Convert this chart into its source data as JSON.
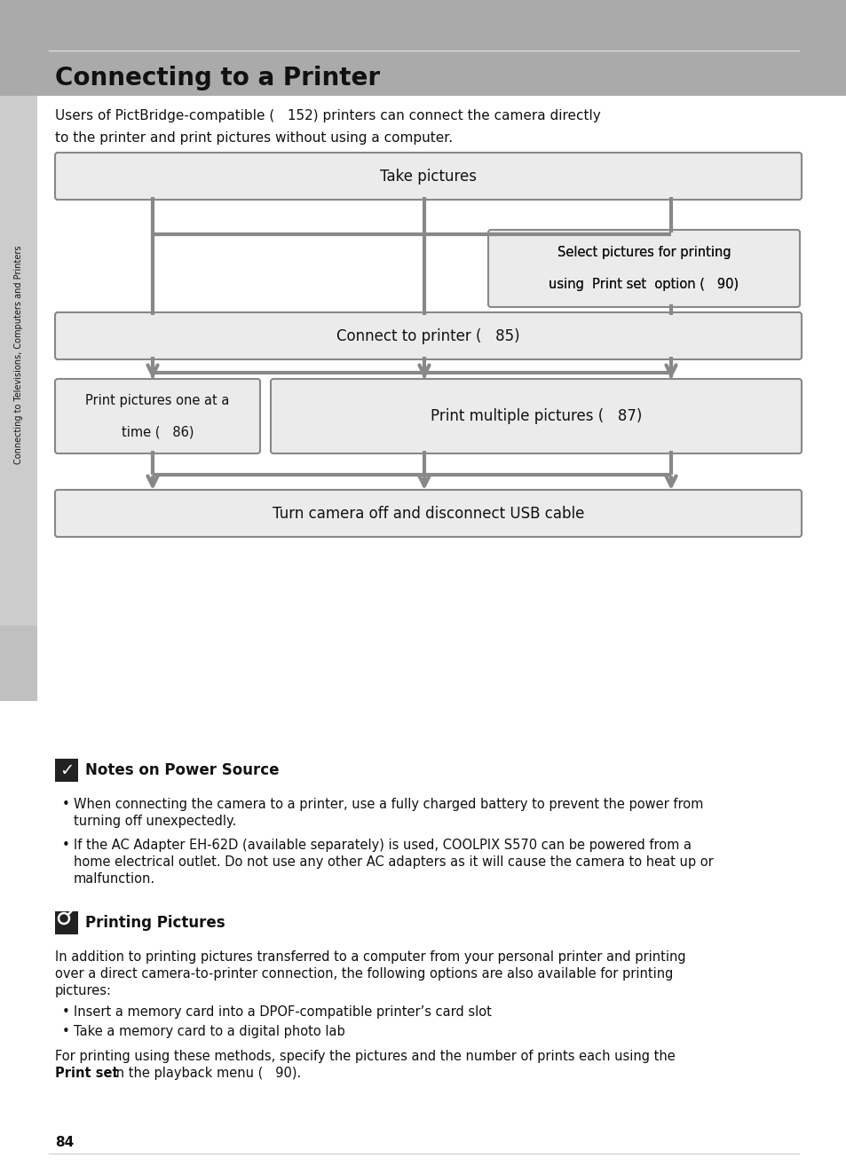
{
  "title": "Connecting to a Printer",
  "header_color": "#aaaaaa",
  "sidebar_color": "#cccccc",
  "sidebar_tab_color": "#bbbbbb",
  "sidebar_text": "Connecting to Televisions, Computers and Printers",
  "intro_line1": "Users of PictBridge-compatible (   152) printers can connect the camera directly",
  "intro_line2": "to the printer and print pictures without using a computer.",
  "box_fill": "#ebebeb",
  "box_edge": "#888888",
  "arrow_color": "#888888",
  "page_number": "84",
  "notes_header": "Notes on Power Source",
  "notes_b1a": "When connecting the camera to a printer, use a fully charged battery to prevent the power from",
  "notes_b1b": "turning off unexpectedly.",
  "notes_b2a": "If the AC Adapter EH-62D (available separately) is used, COOLPIX S570 can be powered from a",
  "notes_b2b": "home electrical outlet. Do not use any other AC adapters as it will cause the camera to heat up or",
  "notes_b2c": "malfunction.",
  "pp_header": "Printing Pictures",
  "pp_body1": "In addition to printing pictures transferred to a computer from your personal printer and printing",
  "pp_body2": "over a direct camera-to-printer connection, the following options are also available for printing",
  "pp_body3": "pictures:",
  "pp_b1": "Insert a memory card into a DPOF-compatible printer’s card slot",
  "pp_b2": "Take a memory card to a digital photo lab",
  "pp_f1": "For printing using these methods, specify the pictures and the number of prints each using the",
  "pp_f2_bold": "Print set",
  "pp_f2_rest": " in the playback menu (   90)."
}
